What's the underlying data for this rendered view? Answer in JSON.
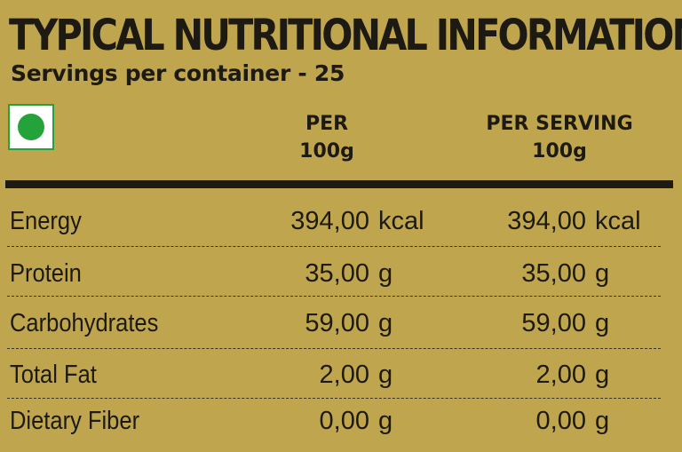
{
  "label": {
    "title": "TYPICAL NUTRITIONAL INFORMATION",
    "servings": "Servings per container - 25",
    "background_color": "#bfa64e",
    "veg_mark_icon": "green-dot-veg-icon",
    "veg_mark_color": "#25a33b"
  },
  "columns": [
    {
      "line1": "PER",
      "line2": "100g"
    },
    {
      "line1": "PER SERVING",
      "line2": "100g"
    }
  ],
  "rows": [
    {
      "name": "Energy",
      "per_100g": "394,00",
      "per_100g_unit": "kcal",
      "per_serving": "394,00",
      "per_serving_unit": "kcal"
    },
    {
      "name": "Protein",
      "per_100g": "35,00",
      "per_100g_unit": "g",
      "per_serving": "35,00",
      "per_serving_unit": "g"
    },
    {
      "name": "Carbohydrates",
      "per_100g": "59,00",
      "per_100g_unit": "g",
      "per_serving": "59,00",
      "per_serving_unit": "g"
    },
    {
      "name": "Total Fat",
      "per_100g": "2,00",
      "per_100g_unit": "g",
      "per_serving": "2,00",
      "per_serving_unit": "g"
    },
    {
      "name": "Dietary Fiber",
      "per_100g": "0,00",
      "per_100g_unit": "g",
      "per_serving": "0,00",
      "per_serving_unit": "g"
    }
  ]
}
